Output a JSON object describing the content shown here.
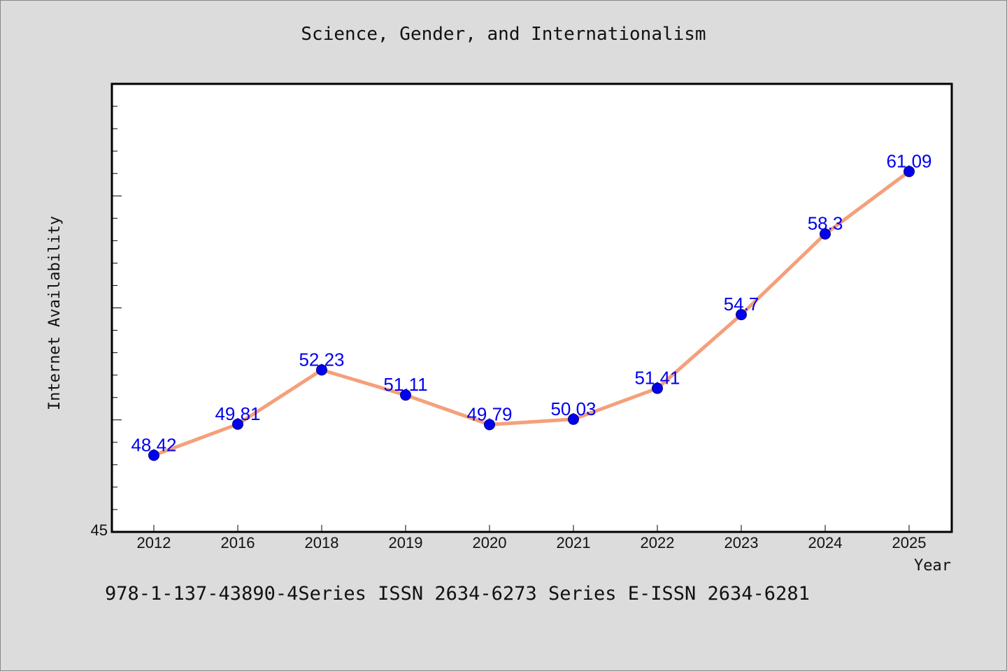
{
  "title": "Science, Gender, and Internationalism",
  "footer": "978-1-137-43890-4Series ISSN 2634-6273 Series E-ISSN 2634-6281",
  "colors": {
    "background": "#dcdcdc",
    "plot_background": "#ffffff",
    "line": "#f4a07a",
    "marker": "#0000ee",
    "data_label": "#0000ee"
  },
  "chart_data": {
    "type": "line",
    "title": "Science, Gender, and Internationalism",
    "xlabel": "Year",
    "ylabel": "Internet Availability",
    "categories": [
      "2012",
      "2016",
      "2018",
      "2019",
      "2020",
      "2021",
      "2022",
      "2023",
      "2024",
      "2025"
    ],
    "series": [
      {
        "values": [
          48.42,
          49.81,
          52.23,
          51.11,
          49.79,
          50.03,
          51.41,
          54.7,
          58.3,
          61.09
        ],
        "labels": [
          "48.42",
          "49.81",
          "52.23",
          "51.11",
          "49.79",
          "50.03",
          "51.41",
          "54.7",
          "58.3",
          "61.09"
        ]
      }
    ],
    "y_tick_labels": [
      "45"
    ],
    "ylim": [
      45,
      65
    ],
    "y_minor_step": 1,
    "grid": false,
    "legend": "none"
  }
}
